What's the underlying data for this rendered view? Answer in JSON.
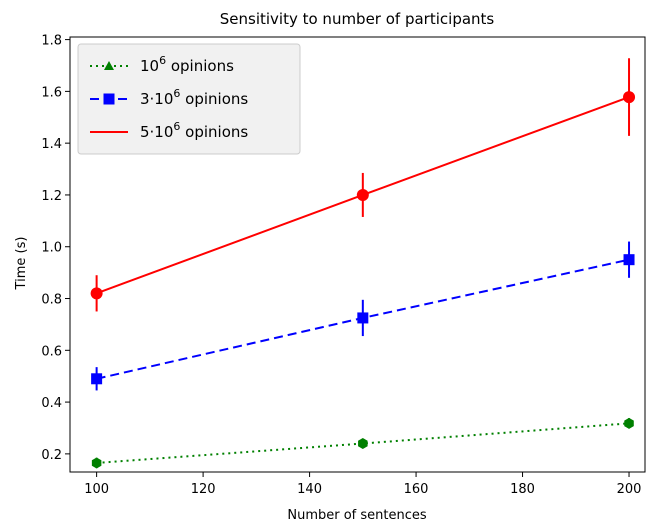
{
  "chart_data": {
    "type": "line",
    "title": "Sensitivity to number of participants",
    "xlabel": "Number of sentences",
    "ylabel": "Time (s)",
    "xlim": [
      95,
      203
    ],
    "ylim": [
      0.13,
      1.81
    ],
    "xticks": [
      100,
      120,
      140,
      160,
      180,
      200
    ],
    "yticks": [
      0.2,
      0.4,
      0.6,
      0.8,
      1.0,
      1.2,
      1.4,
      1.6,
      1.8
    ],
    "xtick_labels": [
      "100",
      "120",
      "140",
      "160",
      "180",
      "200"
    ],
    "ytick_labels": [
      "0.2",
      "0.4",
      "0.6",
      "0.8",
      "1.0",
      "1.2",
      "1.4",
      "1.6",
      "1.8"
    ],
    "grid": false,
    "legend_position": "top-left",
    "x": [
      100,
      150,
      200
    ],
    "series": [
      {
        "name_base": "10",
        "name_sup": "6",
        "name_rest": " opinions",
        "values": [
          0.165,
          0.24,
          0.318
        ],
        "errors": [
          0.02,
          0.018,
          0.02
        ],
        "color": "#008000",
        "linestyle": "dotted",
        "legend_marker": "triangle",
        "data_marker": "hexagon"
      },
      {
        "name_base": "3·10",
        "name_sup": "6",
        "name_rest": " opinions",
        "values": [
          0.49,
          0.725,
          0.95
        ],
        "errors": [
          0.045,
          0.07,
          0.07
        ],
        "color": "#0000ff",
        "linestyle": "dashed",
        "legend_marker": "square",
        "data_marker": "square"
      },
      {
        "name_base": "5·10",
        "name_sup": "6",
        "name_rest": " opinions",
        "values": [
          0.82,
          1.2,
          1.578
        ],
        "errors": [
          0.07,
          0.085,
          0.15
        ],
        "color": "#ff0000",
        "linestyle": "solid",
        "legend_marker": "line",
        "data_marker": "circle"
      }
    ]
  }
}
